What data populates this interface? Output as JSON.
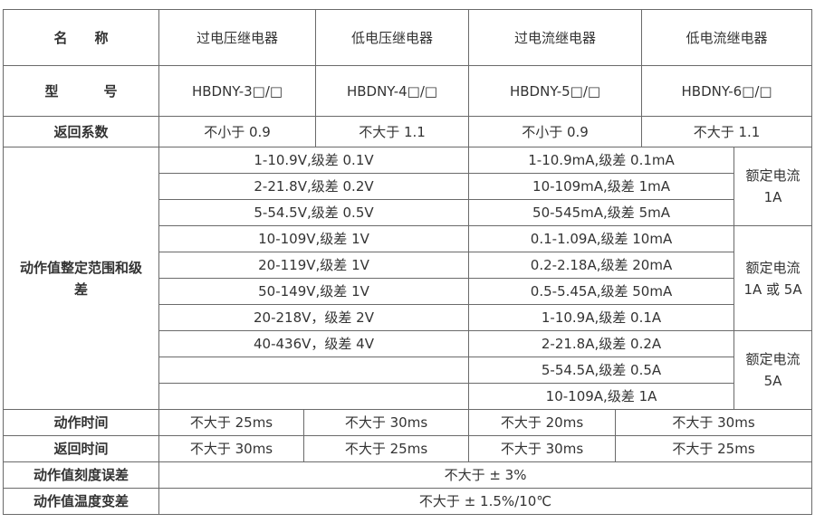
{
  "header": {
    "label": "名称",
    "label_a": "名",
    "label_b": "称",
    "columns": [
      "过电压继电器",
      "低电压继电器",
      "过电流继电器",
      "低电流继电器"
    ]
  },
  "model": {
    "label_a": "型",
    "label_b": "号",
    "values": [
      "HBDNY-3□/□",
      "HBDNY-4□/□",
      "HBDNY-5□/□",
      "HBDNY-6□/□"
    ]
  },
  "return_coefficient": {
    "label": "返回系数",
    "values": [
      "不小于 0.9",
      "不大于 1.1",
      "不小于 0.9",
      "不大于 1.1"
    ]
  },
  "setting_range": {
    "label": "动作值整定范围和级差",
    "voltage": [
      "1-10.9V,级差 0.1V",
      "2-21.8V,级差 0.2V",
      "5-54.5V,级差 0.5V",
      "10-109V,级差 1V",
      "20-119V,级差 1V",
      "50-149V,级差 1V",
      "20-218V，级差 2V",
      "40-436V，级差 4V",
      "",
      ""
    ],
    "current": [
      "1-10.9mA,级差 0.1mA",
      "10-109mA,级差 1mA",
      "50-545mA,级差 5mA",
      "0.1-1.09A,级差 10mA",
      "0.2-2.18A,级差 20mA",
      "0.5-5.45A,级差 50mA",
      "1-10.9A,级差 0.1A",
      "2-21.8A,级差 0.2A",
      "5-54.5A,级差 0.5A",
      "10-109A,级差 1A"
    ],
    "rated": [
      "额定电流 1A",
      "额定电流 1A 或 5A",
      "额定电流 5A"
    ]
  },
  "operate_time": {
    "label": "动作时间",
    "values": [
      "不大于 25ms",
      "不大于 30ms",
      "不大于 20ms",
      "不大于 30ms"
    ]
  },
  "return_time": {
    "label": "返回时间",
    "values": [
      "不大于 30ms",
      "不大于 25ms",
      "不大于 30ms",
      "不大于 25ms"
    ]
  },
  "scale_error": {
    "label": "动作值刻度误差",
    "value": "不大于 ± 3%"
  },
  "temp_variation": {
    "label": "动作值温度变差",
    "value": "不大于 ± 1.5%/10℃"
  }
}
